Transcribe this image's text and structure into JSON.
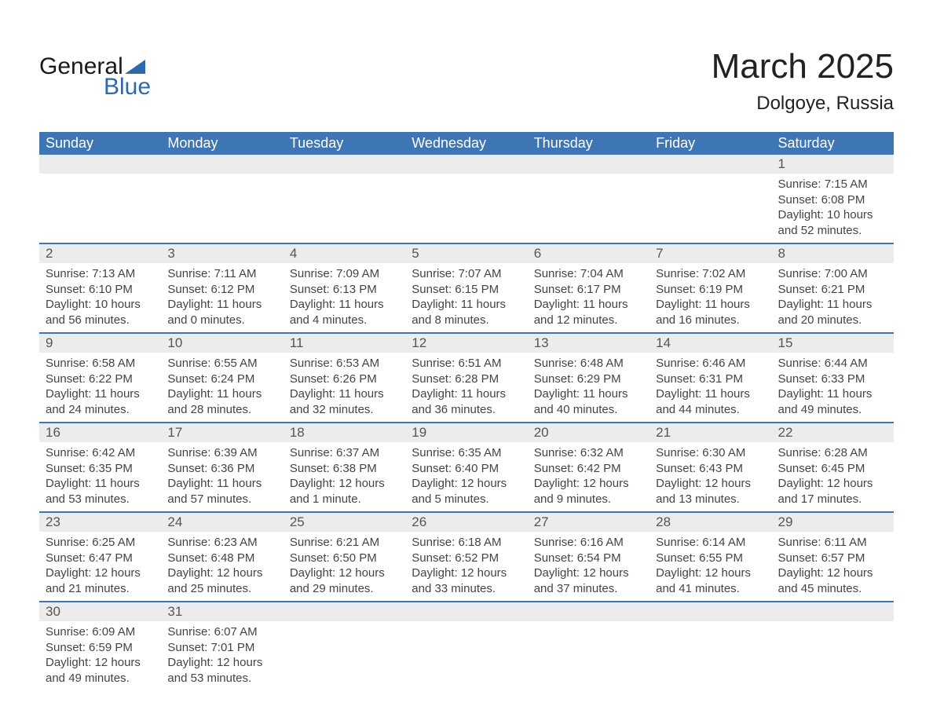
{
  "logo": {
    "word1": "General",
    "word2": "Blue"
  },
  "title": "March 2025",
  "location": "Dolgoye, Russia",
  "header_bg": "#3e76b4",
  "daynum_bg": "#ececec",
  "divider_color": "#3e76b4",
  "weekdays": [
    "Sunday",
    "Monday",
    "Tuesday",
    "Wednesday",
    "Thursday",
    "Friday",
    "Saturday"
  ],
  "weeks": [
    [
      null,
      null,
      null,
      null,
      null,
      null,
      {
        "day": "1",
        "sunrise": "Sunrise: 7:15 AM",
        "sunset": "Sunset: 6:08 PM",
        "daylight1": "Daylight: 10 hours",
        "daylight2": "and 52 minutes."
      }
    ],
    [
      {
        "day": "2",
        "sunrise": "Sunrise: 7:13 AM",
        "sunset": "Sunset: 6:10 PM",
        "daylight1": "Daylight: 10 hours",
        "daylight2": "and 56 minutes."
      },
      {
        "day": "3",
        "sunrise": "Sunrise: 7:11 AM",
        "sunset": "Sunset: 6:12 PM",
        "daylight1": "Daylight: 11 hours",
        "daylight2": "and 0 minutes."
      },
      {
        "day": "4",
        "sunrise": "Sunrise: 7:09 AM",
        "sunset": "Sunset: 6:13 PM",
        "daylight1": "Daylight: 11 hours",
        "daylight2": "and 4 minutes."
      },
      {
        "day": "5",
        "sunrise": "Sunrise: 7:07 AM",
        "sunset": "Sunset: 6:15 PM",
        "daylight1": "Daylight: 11 hours",
        "daylight2": "and 8 minutes."
      },
      {
        "day": "6",
        "sunrise": "Sunrise: 7:04 AM",
        "sunset": "Sunset: 6:17 PM",
        "daylight1": "Daylight: 11 hours",
        "daylight2": "and 12 minutes."
      },
      {
        "day": "7",
        "sunrise": "Sunrise: 7:02 AM",
        "sunset": "Sunset: 6:19 PM",
        "daylight1": "Daylight: 11 hours",
        "daylight2": "and 16 minutes."
      },
      {
        "day": "8",
        "sunrise": "Sunrise: 7:00 AM",
        "sunset": "Sunset: 6:21 PM",
        "daylight1": "Daylight: 11 hours",
        "daylight2": "and 20 minutes."
      }
    ],
    [
      {
        "day": "9",
        "sunrise": "Sunrise: 6:58 AM",
        "sunset": "Sunset: 6:22 PM",
        "daylight1": "Daylight: 11 hours",
        "daylight2": "and 24 minutes."
      },
      {
        "day": "10",
        "sunrise": "Sunrise: 6:55 AM",
        "sunset": "Sunset: 6:24 PM",
        "daylight1": "Daylight: 11 hours",
        "daylight2": "and 28 minutes."
      },
      {
        "day": "11",
        "sunrise": "Sunrise: 6:53 AM",
        "sunset": "Sunset: 6:26 PM",
        "daylight1": "Daylight: 11 hours",
        "daylight2": "and 32 minutes."
      },
      {
        "day": "12",
        "sunrise": "Sunrise: 6:51 AM",
        "sunset": "Sunset: 6:28 PM",
        "daylight1": "Daylight: 11 hours",
        "daylight2": "and 36 minutes."
      },
      {
        "day": "13",
        "sunrise": "Sunrise: 6:48 AM",
        "sunset": "Sunset: 6:29 PM",
        "daylight1": "Daylight: 11 hours",
        "daylight2": "and 40 minutes."
      },
      {
        "day": "14",
        "sunrise": "Sunrise: 6:46 AM",
        "sunset": "Sunset: 6:31 PM",
        "daylight1": "Daylight: 11 hours",
        "daylight2": "and 44 minutes."
      },
      {
        "day": "15",
        "sunrise": "Sunrise: 6:44 AM",
        "sunset": "Sunset: 6:33 PM",
        "daylight1": "Daylight: 11 hours",
        "daylight2": "and 49 minutes."
      }
    ],
    [
      {
        "day": "16",
        "sunrise": "Sunrise: 6:42 AM",
        "sunset": "Sunset: 6:35 PM",
        "daylight1": "Daylight: 11 hours",
        "daylight2": "and 53 minutes."
      },
      {
        "day": "17",
        "sunrise": "Sunrise: 6:39 AM",
        "sunset": "Sunset: 6:36 PM",
        "daylight1": "Daylight: 11 hours",
        "daylight2": "and 57 minutes."
      },
      {
        "day": "18",
        "sunrise": "Sunrise: 6:37 AM",
        "sunset": "Sunset: 6:38 PM",
        "daylight1": "Daylight: 12 hours",
        "daylight2": "and 1 minute."
      },
      {
        "day": "19",
        "sunrise": "Sunrise: 6:35 AM",
        "sunset": "Sunset: 6:40 PM",
        "daylight1": "Daylight: 12 hours",
        "daylight2": "and 5 minutes."
      },
      {
        "day": "20",
        "sunrise": "Sunrise: 6:32 AM",
        "sunset": "Sunset: 6:42 PM",
        "daylight1": "Daylight: 12 hours",
        "daylight2": "and 9 minutes."
      },
      {
        "day": "21",
        "sunrise": "Sunrise: 6:30 AM",
        "sunset": "Sunset: 6:43 PM",
        "daylight1": "Daylight: 12 hours",
        "daylight2": "and 13 minutes."
      },
      {
        "day": "22",
        "sunrise": "Sunrise: 6:28 AM",
        "sunset": "Sunset: 6:45 PM",
        "daylight1": "Daylight: 12 hours",
        "daylight2": "and 17 minutes."
      }
    ],
    [
      {
        "day": "23",
        "sunrise": "Sunrise: 6:25 AM",
        "sunset": "Sunset: 6:47 PM",
        "daylight1": "Daylight: 12 hours",
        "daylight2": "and 21 minutes."
      },
      {
        "day": "24",
        "sunrise": "Sunrise: 6:23 AM",
        "sunset": "Sunset: 6:48 PM",
        "daylight1": "Daylight: 12 hours",
        "daylight2": "and 25 minutes."
      },
      {
        "day": "25",
        "sunrise": "Sunrise: 6:21 AM",
        "sunset": "Sunset: 6:50 PM",
        "daylight1": "Daylight: 12 hours",
        "daylight2": "and 29 minutes."
      },
      {
        "day": "26",
        "sunrise": "Sunrise: 6:18 AM",
        "sunset": "Sunset: 6:52 PM",
        "daylight1": "Daylight: 12 hours",
        "daylight2": "and 33 minutes."
      },
      {
        "day": "27",
        "sunrise": "Sunrise: 6:16 AM",
        "sunset": "Sunset: 6:54 PM",
        "daylight1": "Daylight: 12 hours",
        "daylight2": "and 37 minutes."
      },
      {
        "day": "28",
        "sunrise": "Sunrise: 6:14 AM",
        "sunset": "Sunset: 6:55 PM",
        "daylight1": "Daylight: 12 hours",
        "daylight2": "and 41 minutes."
      },
      {
        "day": "29",
        "sunrise": "Sunrise: 6:11 AM",
        "sunset": "Sunset: 6:57 PM",
        "daylight1": "Daylight: 12 hours",
        "daylight2": "and 45 minutes."
      }
    ],
    [
      {
        "day": "30",
        "sunrise": "Sunrise: 6:09 AM",
        "sunset": "Sunset: 6:59 PM",
        "daylight1": "Daylight: 12 hours",
        "daylight2": "and 49 minutes."
      },
      {
        "day": "31",
        "sunrise": "Sunrise: 6:07 AM",
        "sunset": "Sunset: 7:01 PM",
        "daylight1": "Daylight: 12 hours",
        "daylight2": "and 53 minutes."
      },
      null,
      null,
      null,
      null,
      null
    ]
  ]
}
